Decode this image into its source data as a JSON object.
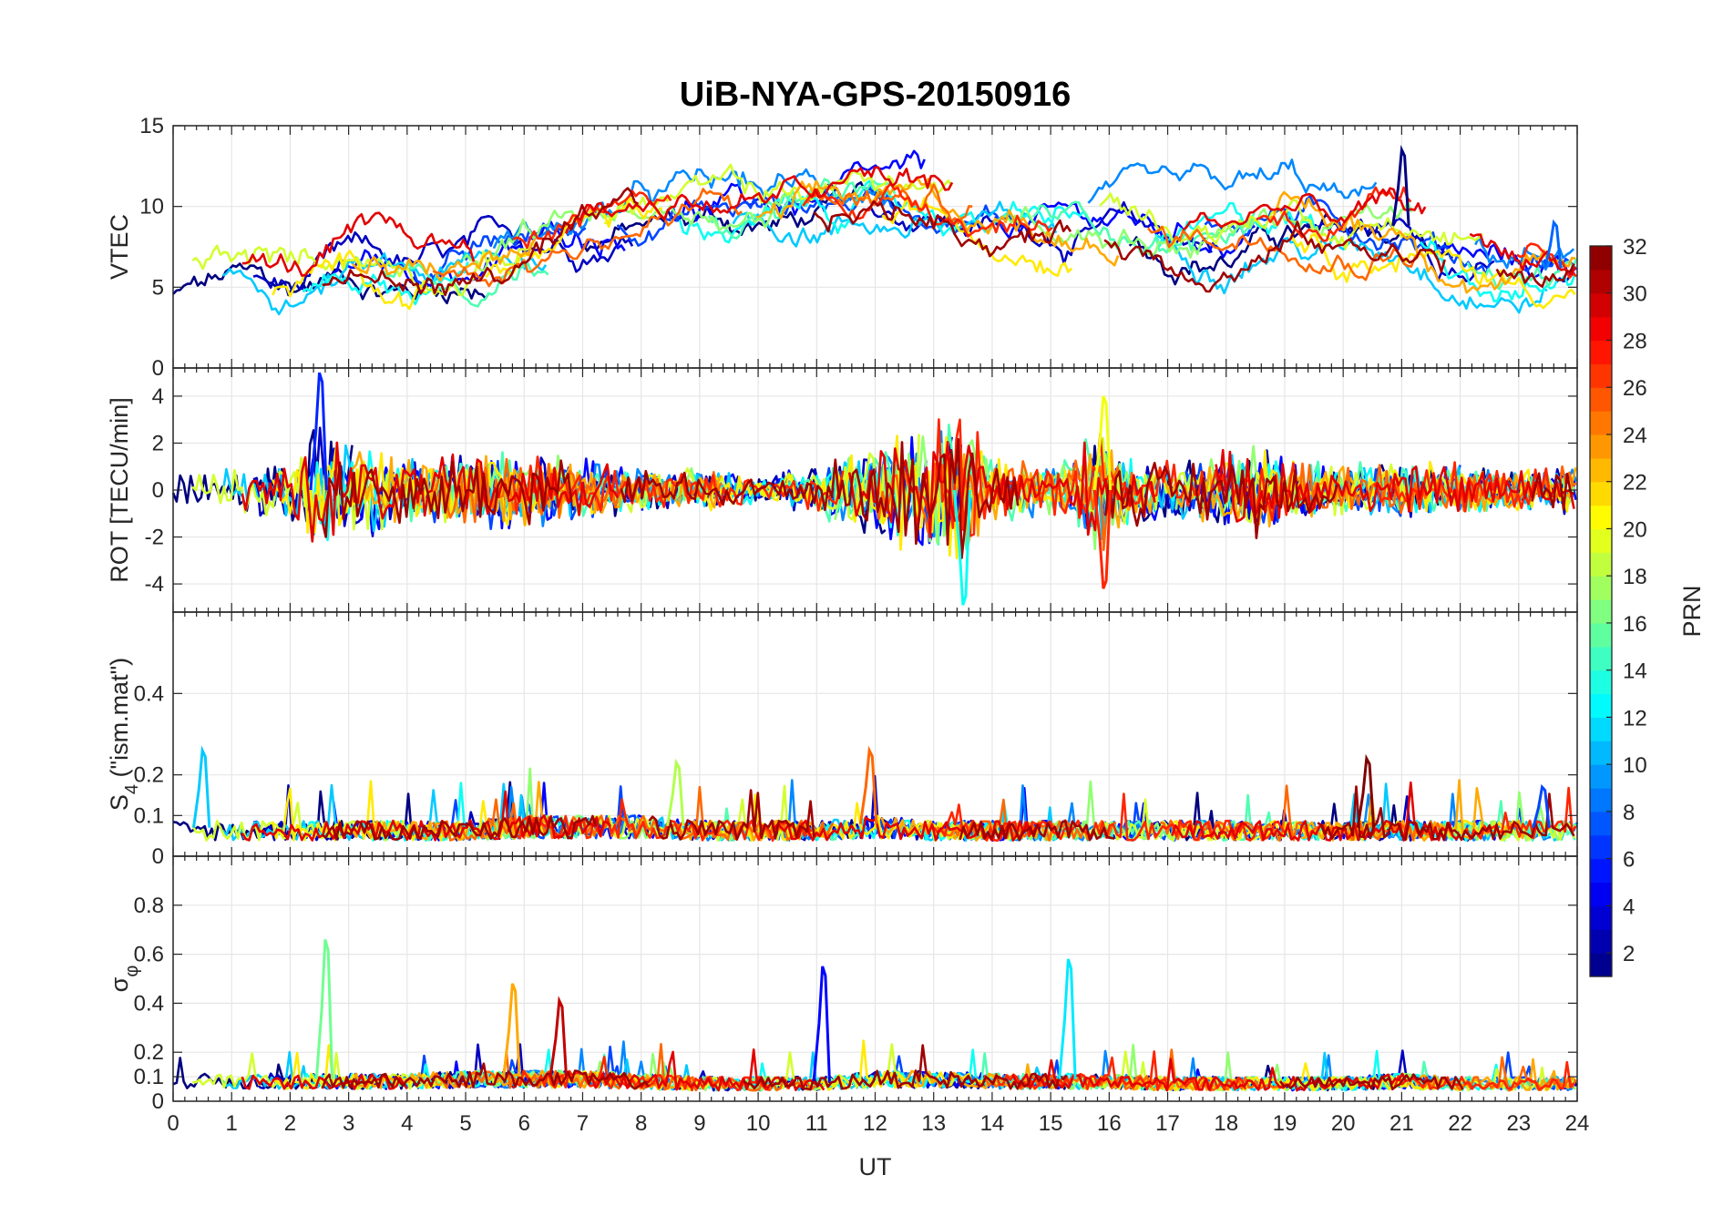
{
  "chart_data": {
    "type": "line",
    "title": "UiB-NYA-GPS-20150916",
    "xlabel": "UT",
    "xlim": [
      0,
      24
    ],
    "x_ticks": [
      "0",
      "1",
      "2",
      "3",
      "4",
      "5",
      "6",
      "7",
      "8",
      "9",
      "10",
      "11",
      "12",
      "13",
      "14",
      "15",
      "16",
      "17",
      "18",
      "19",
      "20",
      "21",
      "22",
      "23",
      "24"
    ],
    "grid": true,
    "colormap": "jet",
    "colorbar": {
      "label": "PRN",
      "range": [
        1,
        32
      ],
      "ticks": [
        "2",
        "4",
        "6",
        "8",
        "10",
        "12",
        "14",
        "16",
        "18",
        "20",
        "22",
        "24",
        "26",
        "28",
        "30",
        "32"
      ],
      "placement": "right"
    },
    "panels": [
      {
        "id": "vtec",
        "ylabel": "VTEC",
        "ylim": [
          0,
          15
        ],
        "y_ticks": [
          "0",
          "5",
          "10",
          "15"
        ],
        "features": [
          [
            0,
            5.5
          ],
          [
            1,
            6.2
          ],
          [
            2,
            5.0
          ],
          [
            3,
            6.5
          ],
          [
            4,
            5.8
          ],
          [
            5,
            6.2
          ],
          [
            6,
            7.2
          ],
          [
            7,
            8.2
          ],
          [
            8,
            9.2
          ],
          [
            9,
            9.8
          ],
          [
            10,
            9.6
          ],
          [
            11,
            10.0
          ],
          [
            12,
            10.4
          ],
          [
            13,
            10.2
          ],
          [
            14,
            9.4
          ],
          [
            15,
            9.2
          ],
          [
            16,
            9.2
          ],
          [
            17,
            8.2
          ],
          [
            18,
            8.3
          ],
          [
            19,
            9.4
          ],
          [
            20,
            8.4
          ],
          [
            21,
            8.8
          ],
          [
            22,
            7.2
          ],
          [
            23,
            6.2
          ],
          [
            24,
            6.2
          ]
        ],
        "highlights": [
          {
            "x": 21.0,
            "y": 13.5
          },
          {
            "x": 23.6,
            "y": 9.0
          }
        ]
      },
      {
        "id": "rot",
        "ylabel": "ROT [TECU/min]",
        "ylim": [
          -5.2,
          5.2
        ],
        "y_ticks": [
          "-4",
          "-2",
          "0",
          "2",
          "4"
        ],
        "features": [
          [
            0,
            0.9
          ],
          [
            1,
            0.9
          ],
          [
            2,
            1.6
          ],
          [
            2.5,
            3.0
          ],
          [
            3,
            2.0
          ],
          [
            3.5,
            2.0
          ],
          [
            4,
            1.5
          ],
          [
            5,
            1.8
          ],
          [
            6,
            1.8
          ],
          [
            7,
            1.5
          ],
          [
            8,
            1.0
          ],
          [
            9,
            1.0
          ],
          [
            10,
            0.6
          ],
          [
            11,
            1.2
          ],
          [
            12,
            2.0
          ],
          [
            12.5,
            2.8
          ],
          [
            13,
            3.2
          ],
          [
            13.5,
            3.6
          ],
          [
            14,
            1.4
          ],
          [
            15,
            1.2
          ],
          [
            15.9,
            3.0
          ],
          [
            16,
            1.8
          ],
          [
            17,
            1.4
          ],
          [
            18,
            1.8
          ],
          [
            18.5,
            2.2
          ],
          [
            19,
            1.5
          ],
          [
            20,
            1.2
          ],
          [
            21,
            1.3
          ],
          [
            22,
            1.2
          ],
          [
            23,
            1.0
          ],
          [
            24,
            1.2
          ]
        ],
        "highlights": [
          {
            "x": 2.5,
            "y": 5.0
          },
          {
            "x": 13.5,
            "y": -4.9
          },
          {
            "x": 15.9,
            "y": 4.0
          },
          {
            "x": 15.9,
            "y": -4.2
          }
        ]
      },
      {
        "id": "s4",
        "ylabel": "S4 (\"ism.mat\")",
        "ylabel_main": "S",
        "ylabel_sub": "4",
        "ylabel_rest": " (\"ism.mat\")",
        "ylim": [
          0,
          0.6
        ],
        "y_ticks": [
          "0",
          "0.1",
          "0.2",
          "0.4"
        ],
        "features": [
          [
            0,
            0.07
          ],
          [
            1,
            0.07
          ],
          [
            2,
            0.07
          ],
          [
            3,
            0.07
          ],
          [
            4,
            0.07
          ],
          [
            5,
            0.07
          ],
          [
            6,
            0.08
          ],
          [
            7,
            0.08
          ],
          [
            8,
            0.08
          ],
          [
            9,
            0.07
          ],
          [
            10,
            0.07
          ],
          [
            11,
            0.07
          ],
          [
            12,
            0.08
          ],
          [
            13,
            0.07
          ],
          [
            14,
            0.07
          ],
          [
            15,
            0.07
          ],
          [
            16,
            0.07
          ],
          [
            17,
            0.07
          ],
          [
            18,
            0.07
          ],
          [
            19,
            0.07
          ],
          [
            20,
            0.07
          ],
          [
            21,
            0.07
          ],
          [
            22,
            0.07
          ],
          [
            23,
            0.07
          ],
          [
            24,
            0.07
          ]
        ],
        "highlights": [
          {
            "x": 0.5,
            "y": 0.26
          },
          {
            "x": 8.6,
            "y": 0.23
          },
          {
            "x": 11.9,
            "y": 0.26
          },
          {
            "x": 20.4,
            "y": 0.24
          },
          {
            "x": 23.4,
            "y": 0.17
          }
        ]
      },
      {
        "id": "sigma_phi",
        "ylabel": "σφ",
        "ylabel_main": "σ",
        "ylabel_sub": "φ",
        "ylim": [
          0,
          1.0
        ],
        "y_ticks": [
          "0",
          "0.1",
          "0.2",
          "0.4",
          "0.6",
          "0.8"
        ],
        "features": [
          [
            0,
            0.09
          ],
          [
            1,
            0.09
          ],
          [
            2,
            0.09
          ],
          [
            3,
            0.09
          ],
          [
            4,
            0.09
          ],
          [
            5,
            0.1
          ],
          [
            6,
            0.1
          ],
          [
            7,
            0.1
          ],
          [
            8,
            0.09
          ],
          [
            9,
            0.08
          ],
          [
            10,
            0.08
          ],
          [
            11,
            0.08
          ],
          [
            12,
            0.1
          ],
          [
            13,
            0.1
          ],
          [
            14,
            0.09
          ],
          [
            15,
            0.09
          ],
          [
            16,
            0.09
          ],
          [
            17,
            0.08
          ],
          [
            18,
            0.08
          ],
          [
            19,
            0.08
          ],
          [
            20,
            0.08
          ],
          [
            21,
            0.09
          ],
          [
            22,
            0.08
          ],
          [
            23,
            0.08
          ],
          [
            24,
            0.08
          ]
        ],
        "highlights": [
          {
            "x": 2.6,
            "y": 0.66
          },
          {
            "x": 5.8,
            "y": 0.48
          },
          {
            "x": 6.6,
            "y": 0.41
          },
          {
            "x": 11.1,
            "y": 0.55
          },
          {
            "x": 15.3,
            "y": 0.58
          }
        ]
      }
    ]
  }
}
